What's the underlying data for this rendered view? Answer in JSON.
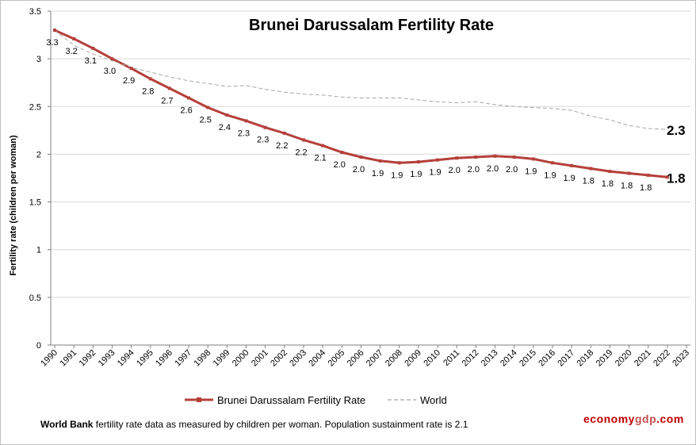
{
  "chart_data": {
    "type": "line",
    "title": "Brunei Darussalam Fertility Rate",
    "ylabel": "Fertility rate (children per woman)",
    "xlabel": "",
    "ylim": [
      0,
      3.5
    ],
    "yticks": [
      "0",
      "0.5",
      "1",
      "1.5",
      "2",
      "2.5",
      "3",
      "3.5"
    ],
    "categories": [
      "1990",
      "1991",
      "1992",
      "1993",
      "1994",
      "1995",
      "1996",
      "1997",
      "1998",
      "1999",
      "2000",
      "2001",
      "2002",
      "2003",
      "2004",
      "2005",
      "2006",
      "2007",
      "2008",
      "2009",
      "2010",
      "2011",
      "2012",
      "2013",
      "2014",
      "2015",
      "2016",
      "2017",
      "2018",
      "2019",
      "2020",
      "2021",
      "2022",
      "2023"
    ],
    "grid": true,
    "legend_position": "bottom",
    "series": [
      {
        "name": "Brunei Darussalam Fertility Rate",
        "color": "#b5403a",
        "style": "solid-with-markers",
        "values": [
          3.3,
          3.21,
          3.11,
          3.0,
          2.9,
          2.79,
          2.69,
          2.59,
          2.49,
          2.41,
          2.35,
          2.28,
          2.22,
          2.15,
          2.09,
          2.02,
          1.97,
          1.93,
          1.91,
          1.92,
          1.94,
          1.96,
          1.97,
          1.98,
          1.97,
          1.95,
          1.91,
          1.88,
          1.85,
          1.82,
          1.8,
          1.78,
          1.76,
          null
        ],
        "data_labels": [
          "3.3",
          "3.2",
          "3.1",
          "3.0",
          "2.9",
          "2.8",
          "2.7",
          "2.6",
          "2.5",
          "2.4",
          "2.3",
          "2.3",
          "2.2",
          "2.2",
          "2.1",
          "2.0",
          "2.0",
          "1.9",
          "1.9",
          "1.9",
          "1.9",
          "2.0",
          "2.0",
          "2.0",
          "2.0",
          "1.9",
          "1.9",
          "1.9",
          "1.8",
          "1.8",
          "1.8",
          "1.8"
        ],
        "end_label": "1.8"
      },
      {
        "name": "World",
        "color": "#a6a6a6",
        "style": "dashed",
        "values": [
          3.3,
          3.14,
          3.05,
          2.98,
          2.91,
          2.86,
          2.81,
          2.77,
          2.74,
          2.71,
          2.72,
          2.68,
          2.65,
          2.63,
          2.62,
          2.6,
          2.59,
          2.59,
          2.59,
          2.57,
          2.55,
          2.54,
          2.55,
          2.52,
          2.5,
          2.49,
          2.48,
          2.46,
          2.4,
          2.36,
          2.3,
          2.27,
          2.26,
          null
        ],
        "end_label": "2.3"
      }
    ]
  },
  "footnote": {
    "source_bold": "World Bank",
    "text": " fertility rate data as measured by children per woman.  Population sustainment rate is 2.1"
  },
  "brand": {
    "part1": "economy",
    "part2": "gdp",
    "part3": ".com",
    "color_main": "#c00000",
    "color_accent": "#c0504d"
  }
}
